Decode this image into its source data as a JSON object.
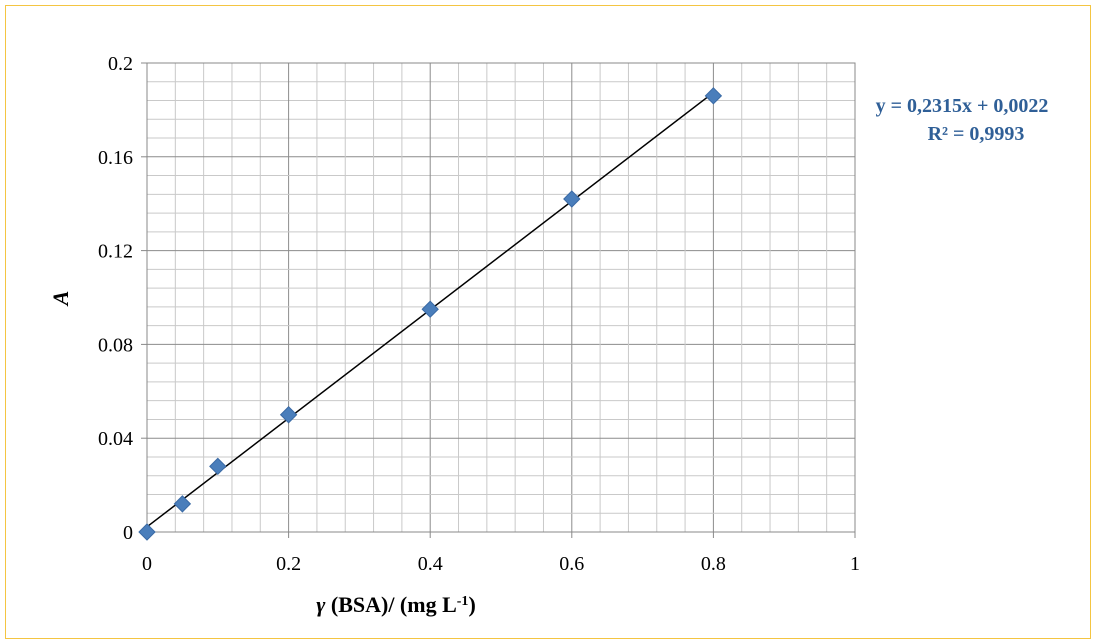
{
  "chart_data": {
    "type": "scatter",
    "title": "",
    "xlabel_prefix": "γ",
    "xlabel_main": " (BSA)/ (mg L",
    "xlabel_sup": "-1",
    "xlabel_end": ")",
    "ylabel": "A",
    "xlim": [
      0,
      1
    ],
    "ylim": [
      0,
      0.2
    ],
    "x_ticks": [
      "0",
      "0.2",
      "0.4",
      "0.6",
      "0.8",
      "1"
    ],
    "y_ticks": [
      "0",
      "0.04",
      "0.08",
      "0.12",
      "0.16",
      "0.2"
    ],
    "grid": true,
    "marker_color": "#4a7ebb",
    "series": [
      {
        "x": [
          0,
          0.05,
          0.1,
          0.2,
          0.4,
          0.6,
          0.8
        ],
        "y": [
          0.0,
          0.012,
          0.028,
          0.05,
          0.095,
          0.142,
          0.186
        ]
      }
    ],
    "trendline": {
      "slope": 0.2315,
      "intercept": 0.0022,
      "x_range": [
        0,
        0.8
      ],
      "equation": "y = 0,2315x + 0,0022",
      "r2_label": "R² = 0,9993",
      "color": "#000000"
    }
  }
}
